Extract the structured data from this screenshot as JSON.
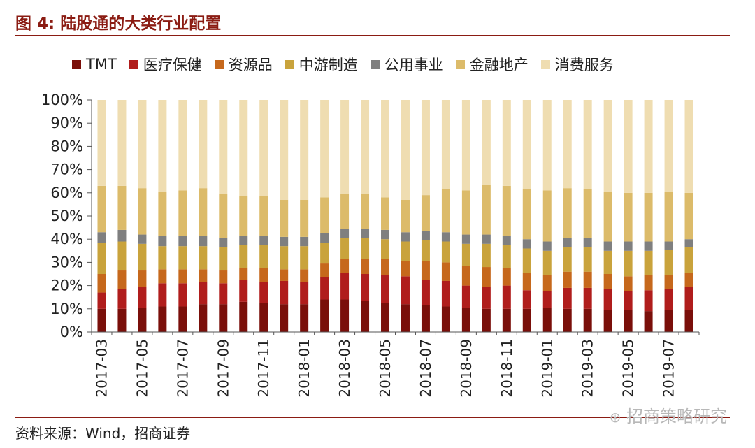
{
  "figure": {
    "title": "图 4:  陆股通的大类行业配置",
    "source": "资料来源：Wind，招商证券",
    "watermark": "招商策略研究"
  },
  "colors": {
    "accent": "#8b1c13",
    "TMT": "#7a0f0a",
    "医疗保健": "#b01d1c",
    "资源品": "#c6681c",
    "中游制造": "#c9a33c",
    "公用事业": "#7f7f7f",
    "金融地产": "#dcbb6a",
    "消费服务": "#efddb1"
  },
  "chart_data": {
    "type": "bar",
    "stacked": true,
    "title": "",
    "xlabel": "",
    "ylabel": "",
    "ylim": [
      0,
      100
    ],
    "y_ticks": [
      "0%",
      "10%",
      "20%",
      "30%",
      "40%",
      "50%",
      "60%",
      "70%",
      "80%",
      "90%",
      "100%"
    ],
    "grid": false,
    "legend_position": "top",
    "categories": [
      "2017-03",
      "2017-04",
      "2017-05",
      "2017-06",
      "2017-07",
      "2017-08",
      "2017-09",
      "2017-10",
      "2017-11",
      "2017-12",
      "2018-01",
      "2018-02",
      "2018-03",
      "2018-04",
      "2018-05",
      "2018-06",
      "2018-07",
      "2018-08",
      "2018-09",
      "2018-10",
      "2018-11",
      "2018-12",
      "2019-01",
      "2019-02",
      "2019-03",
      "2019-04",
      "2019-05",
      "2019-06",
      "2019-07",
      "2019-08"
    ],
    "x_tick_labels": [
      "2017-03",
      "2017-05",
      "2017-07",
      "2017-09",
      "2017-11",
      "2018-01",
      "2018-03",
      "2018-05",
      "2018-07",
      "2018-09",
      "2018-11",
      "2019-01",
      "2019-03",
      "2019-05",
      "2019-07"
    ],
    "series": [
      {
        "name": "TMT",
        "values": [
          10,
          10,
          10.5,
          11,
          11,
          12,
          12,
          13,
          12.5,
          12,
          12,
          14,
          14,
          13.5,
          12.5,
          12,
          11.5,
          11,
          10.5,
          10,
          10,
          10,
          10.5,
          10,
          10,
          9.5,
          9.5,
          9,
          9.5,
          9.5
        ]
      },
      {
        "name": "医疗保健",
        "values": [
          7,
          8.5,
          9,
          10,
          10,
          9.5,
          9,
          9.5,
          9,
          10,
          9.5,
          9.5,
          11.5,
          11.5,
          12,
          12,
          11,
          11,
          9.5,
          9.5,
          10,
          8,
          7,
          9,
          9,
          9,
          8,
          9,
          9,
          10
        ]
      },
      {
        "name": "资源品",
        "values": [
          8,
          8,
          7,
          6,
          6,
          5.5,
          5.5,
          5,
          6,
          5,
          5.5,
          6,
          6,
          6.5,
          7,
          6.5,
          8,
          8,
          8.5,
          8.5,
          7.5,
          7.5,
          7,
          7,
          7,
          6.5,
          6.5,
          6.5,
          6,
          6
        ]
      },
      {
        "name": "中游制造",
        "values": [
          13.5,
          12.5,
          11.5,
          10,
          10,
          10,
          10,
          10,
          10,
          10,
          10,
          9,
          9,
          9,
          8.5,
          8.5,
          9,
          9,
          9.5,
          10,
          10,
          10.5,
          10.5,
          10.5,
          10.5,
          10,
          11,
          10.5,
          11,
          11
        ]
      },
      {
        "name": "公用事业",
        "values": [
          4.5,
          5,
          4,
          4.5,
          4.5,
          4.5,
          4,
          4,
          4,
          4,
          4,
          4,
          4,
          4,
          4,
          4,
          4,
          4,
          4,
          4,
          4,
          4,
          4,
          4,
          4,
          4,
          4,
          4,
          3.5,
          3.5
        ]
      },
      {
        "name": "金融地产",
        "values": [
          20,
          19,
          20,
          19,
          19.5,
          20.5,
          19,
          17,
          17,
          16,
          16,
          15.5,
          15,
          15,
          14,
          14,
          15.5,
          18.5,
          19,
          21.5,
          21.5,
          21.5,
          22,
          21.5,
          21,
          21.5,
          21,
          21,
          21.5,
          20
        ]
      },
      {
        "name": "消费服务",
        "values": [
          37,
          37,
          38,
          39.5,
          39,
          38,
          40.5,
          41.5,
          41.5,
          43,
          43,
          42,
          40.5,
          40.5,
          42,
          43,
          41,
          38.5,
          39,
          36.5,
          37,
          38.5,
          39,
          38,
          38.5,
          39.5,
          40,
          40,
          39.5,
          40
        ]
      }
    ]
  }
}
